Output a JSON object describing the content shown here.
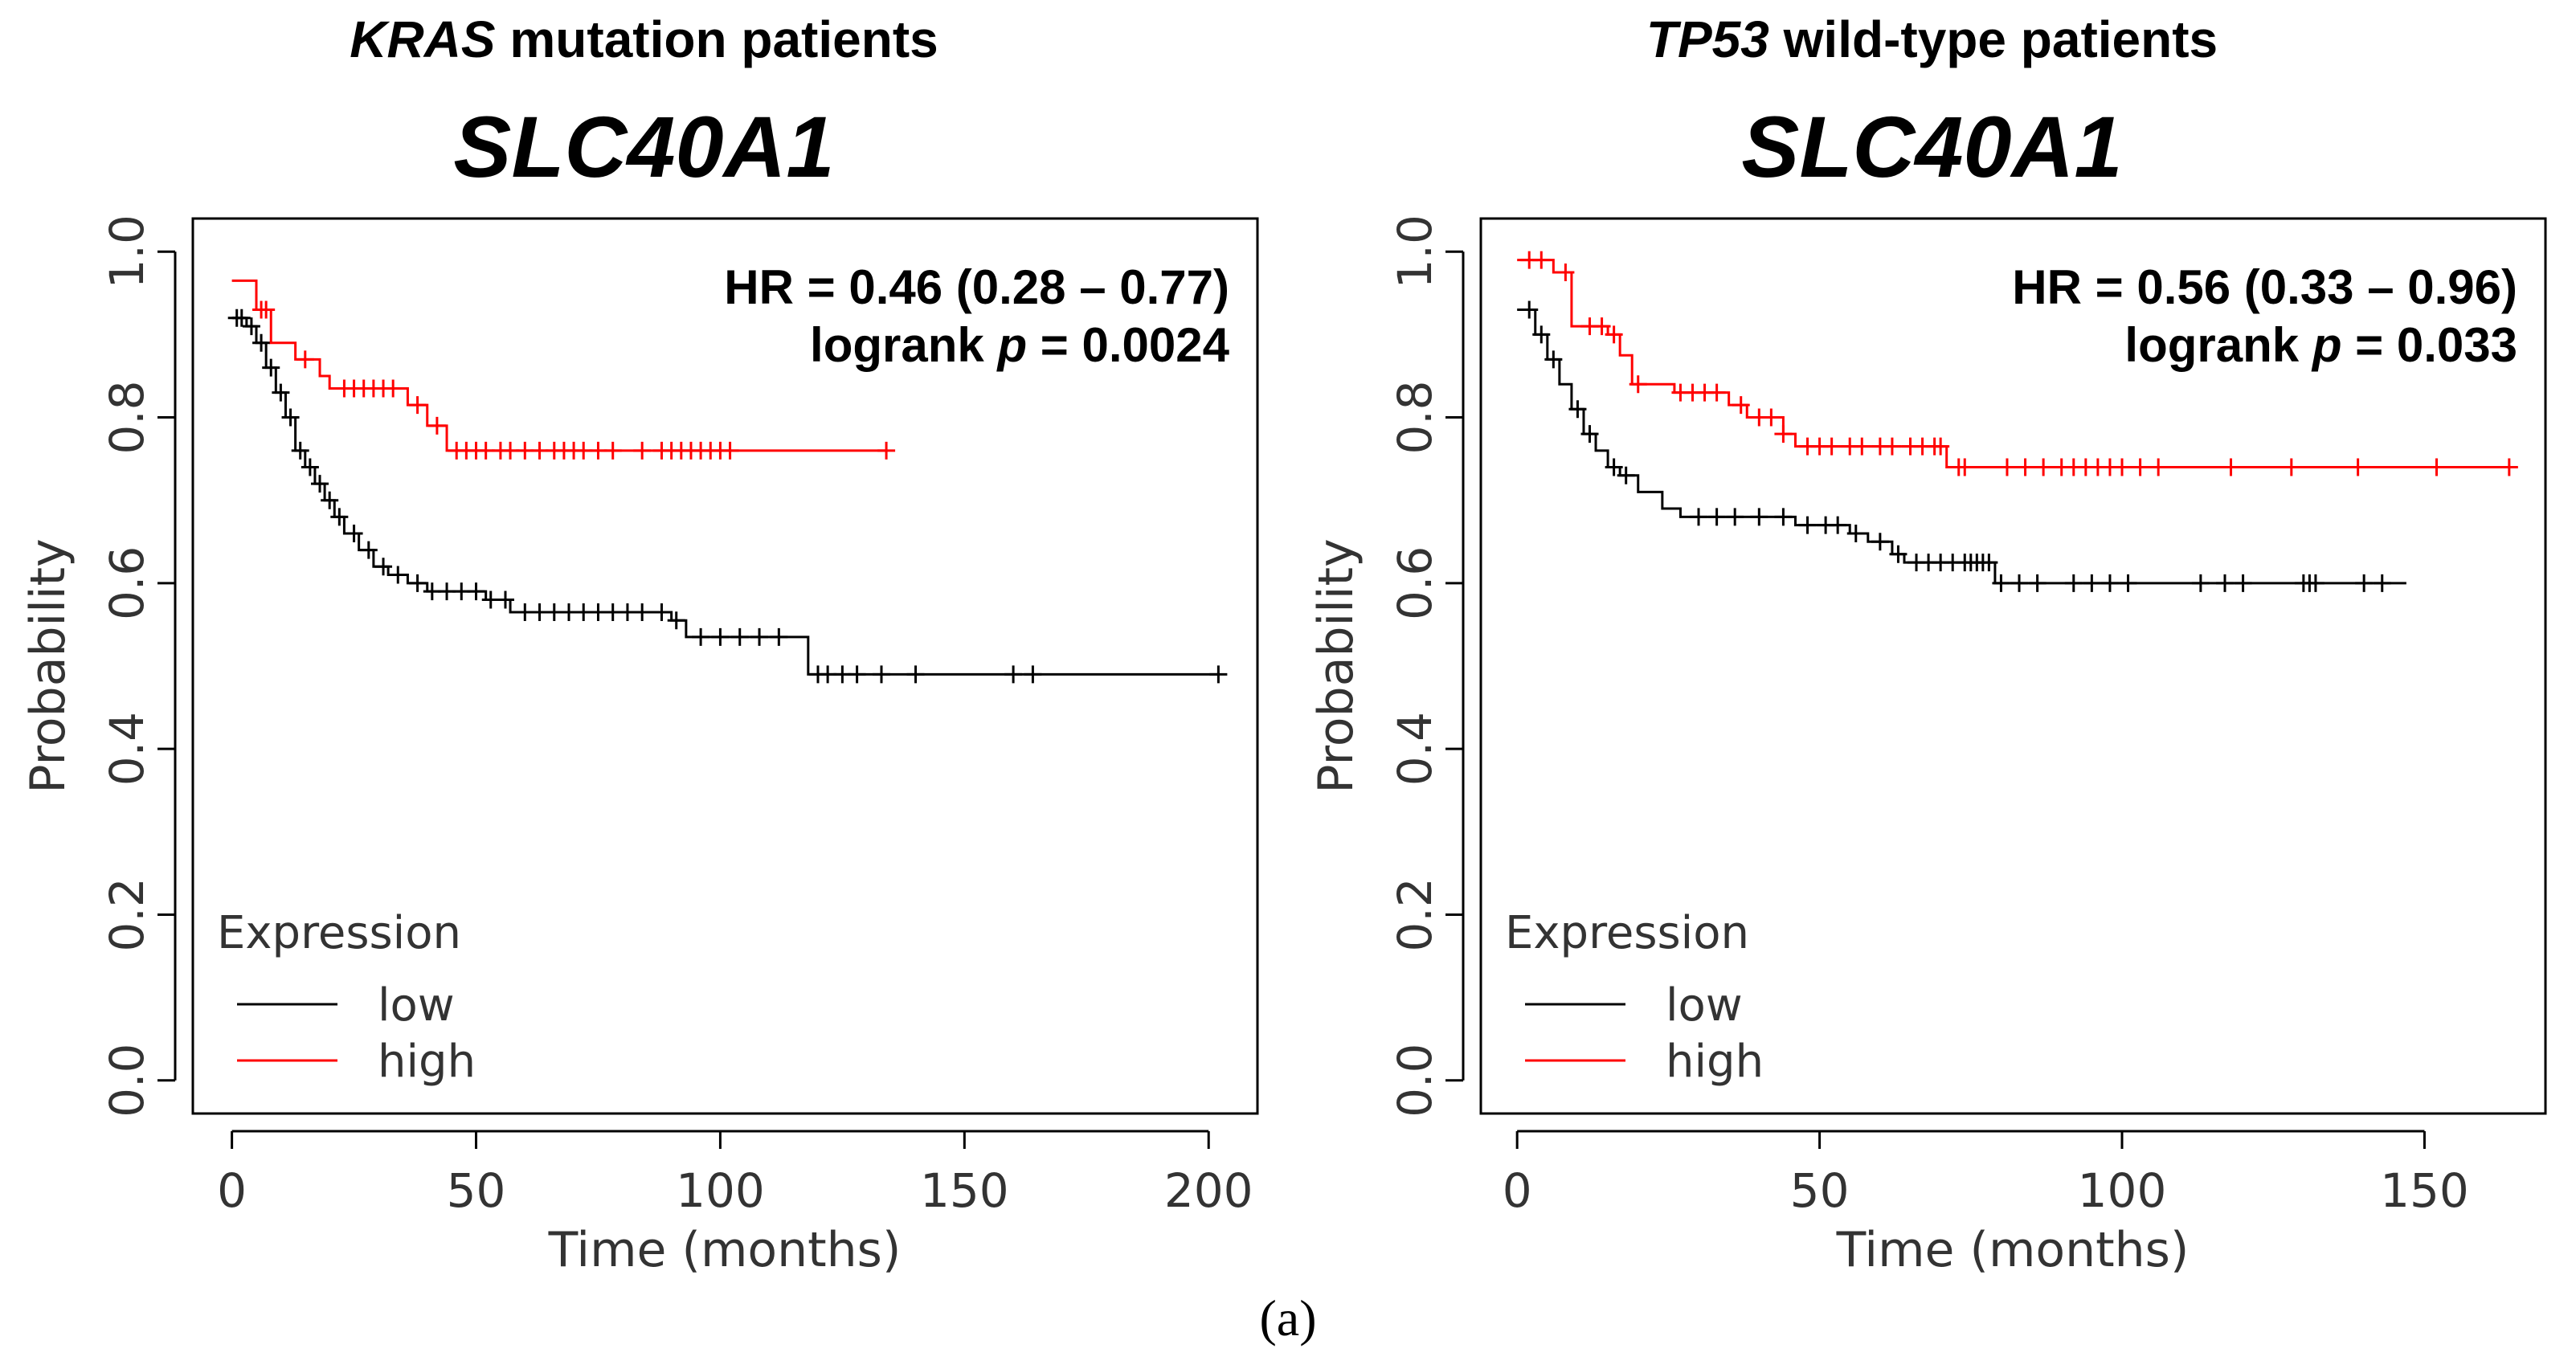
{
  "figure_caption": "(a)",
  "panels": [
    {
      "subtitle_gene": "KRAS",
      "subtitle_rest": "mutation patients",
      "gene": "SLC40A1",
      "hr_text": "HR = 0.46 (0.28 – 0.77)",
      "logrank_prefix": "logrank ",
      "logrank_p": "p",
      "logrank_value": " = 0.0024"
    },
    {
      "subtitle_gene": "TP53",
      "subtitle_rest": "wild-type patients",
      "gene": "SLC40A1",
      "hr_text": "HR = 0.56 (0.33 – 0.96)",
      "logrank_prefix": "logrank ",
      "logrank_p": "p",
      "logrank_value": " = 0.033"
    }
  ],
  "chart_data": [
    {
      "type": "line",
      "title": "KRAS mutation patients SLC40A1",
      "xlabel": "Time (months)",
      "ylabel": "Probability",
      "xlim": [
        -8,
        210
      ],
      "ylim": [
        -0.04,
        1.04
      ],
      "xticks": [
        0,
        50,
        100,
        150,
        200
      ],
      "yticks": [
        0.0,
        0.2,
        0.4,
        0.6,
        0.8,
        1.0
      ],
      "ytick_labels": [
        "0.0",
        "0.2",
        "0.4",
        "0.6",
        "0.8",
        "1.0"
      ],
      "legend_title": "Expression",
      "legend_position": "bottom-left",
      "series": [
        {
          "name": "low",
          "color": "#000000",
          "steps": [
            [
              0,
              0.92
            ],
            [
              3,
              0.91
            ],
            [
              5,
              0.89
            ],
            [
              7,
              0.86
            ],
            [
              9,
              0.83
            ],
            [
              11,
              0.8
            ],
            [
              13,
              0.76
            ],
            [
              15,
              0.74
            ],
            [
              17,
              0.72
            ],
            [
              19,
              0.7
            ],
            [
              21,
              0.68
            ],
            [
              23,
              0.66
            ],
            [
              26,
              0.64
            ],
            [
              29,
              0.62
            ],
            [
              32,
              0.61
            ],
            [
              36,
              0.6
            ],
            [
              40,
              0.59
            ],
            [
              52,
              0.58
            ],
            [
              57,
              0.565
            ],
            [
              90,
              0.555
            ],
            [
              93,
              0.535
            ],
            [
              118,
              0.49
            ],
            [
              202,
              0.49
            ]
          ],
          "censor_times": [
            1,
            2,
            4,
            6,
            8,
            10,
            12,
            14,
            16,
            18,
            20,
            22,
            25,
            28,
            31,
            34,
            38,
            41,
            44,
            47,
            50,
            53,
            56,
            60,
            63,
            66,
            69,
            72,
            75,
            78,
            81,
            84,
            88,
            91,
            96,
            100,
            104,
            108,
            112,
            120,
            122,
            125,
            128,
            133,
            140,
            160,
            164,
            202
          ]
        },
        {
          "name": "high",
          "color": "#ff0000",
          "steps": [
            [
              0,
              0.965
            ],
            [
              5,
              0.93
            ],
            [
              8,
              0.89
            ],
            [
              13,
              0.87
            ],
            [
              18,
              0.85
            ],
            [
              20,
              0.835
            ],
            [
              36,
              0.815
            ],
            [
              40,
              0.79
            ],
            [
              44,
              0.76
            ],
            [
              134,
              0.76
            ]
          ],
          "censor_times": [
            6,
            7,
            15,
            23,
            25,
            27,
            29,
            31,
            33,
            38,
            42,
            46,
            48,
            50,
            52,
            55,
            57,
            60,
            63,
            66,
            68,
            70,
            72,
            75,
            78,
            84,
            88,
            90,
            92,
            94,
            96,
            98,
            100,
            102,
            134
          ]
        }
      ]
    },
    {
      "type": "line",
      "title": "TP53 wild-type patients SLC40A1",
      "xlabel": "Time (months)",
      "ylabel": "Probability",
      "xlim": [
        -6,
        170
      ],
      "ylim": [
        -0.04,
        1.04
      ],
      "xticks": [
        0,
        50,
        100,
        150
      ],
      "yticks": [
        0.0,
        0.2,
        0.4,
        0.6,
        0.8,
        1.0
      ],
      "ytick_labels": [
        "0.0",
        "0.2",
        "0.4",
        "0.6",
        "0.8",
        "1.0"
      ],
      "legend_title": "Expression",
      "legend_position": "bottom-left",
      "series": [
        {
          "name": "low",
          "color": "#000000",
          "steps": [
            [
              0,
              0.93
            ],
            [
              3,
              0.9
            ],
            [
              5,
              0.87
            ],
            [
              7,
              0.84
            ],
            [
              9,
              0.81
            ],
            [
              11,
              0.78
            ],
            [
              13,
              0.76
            ],
            [
              15,
              0.74
            ],
            [
              17,
              0.73
            ],
            [
              20,
              0.71
            ],
            [
              24,
              0.69
            ],
            [
              27,
              0.68
            ],
            [
              46,
              0.67
            ],
            [
              55,
              0.66
            ],
            [
              58,
              0.65
            ],
            [
              62,
              0.635
            ],
            [
              64,
              0.625
            ],
            [
              79,
              0.6
            ],
            [
              147,
              0.6
            ]
          ],
          "censor_times": [
            2,
            4,
            6,
            10,
            12,
            16,
            18,
            30,
            33,
            36,
            40,
            44,
            48,
            51,
            53,
            56,
            60,
            63,
            66,
            68,
            70,
            72,
            74,
            75,
            76,
            77,
            78,
            80,
            83,
            86,
            92,
            95,
            98,
            101,
            113,
            117,
            120,
            130,
            131,
            132,
            140,
            143
          ]
        },
        {
          "name": "high",
          "color": "#ff0000",
          "steps": [
            [
              0,
              0.99
            ],
            [
              6,
              0.975
            ],
            [
              9,
              0.91
            ],
            [
              15,
              0.9
            ],
            [
              17,
              0.875
            ],
            [
              19,
              0.84
            ],
            [
              26,
              0.83
            ],
            [
              35,
              0.815
            ],
            [
              38,
              0.8
            ],
            [
              44,
              0.78
            ],
            [
              46,
              0.765
            ],
            [
              71,
              0.74
            ],
            [
              164,
              0.74
            ]
          ],
          "censor_times": [
            2,
            4,
            8,
            12,
            14,
            16,
            20,
            27,
            29,
            31,
            33,
            37,
            40,
            42,
            44,
            48,
            50,
            52,
            55,
            57,
            60,
            62,
            65,
            67,
            69,
            70,
            73,
            74,
            81,
            84,
            87,
            90,
            92,
            94,
            96,
            98,
            100,
            103,
            106,
            118,
            128,
            139,
            152,
            164
          ]
        }
      ]
    }
  ]
}
